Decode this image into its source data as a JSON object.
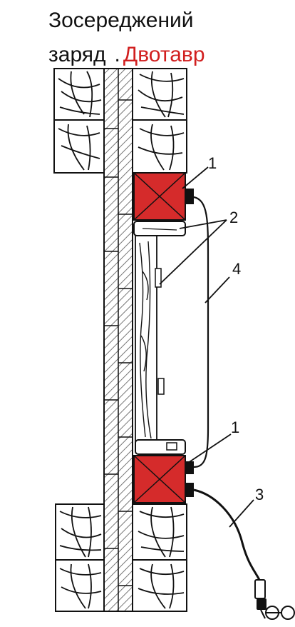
{
  "title": {
    "line1": "Зосереджений",
    "line2_word": "заряд",
    "line2_sep": ".",
    "line2_red": "Двотавр"
  },
  "labels": {
    "charge_top": "1",
    "charge_bottom": "1",
    "boards": "2",
    "cord_lower": "3",
    "cord_upper": "4"
  },
  "colors": {
    "charge_fill": "#d52b2b",
    "title_red": "#d11f1f",
    "line": "#111111"
  }
}
